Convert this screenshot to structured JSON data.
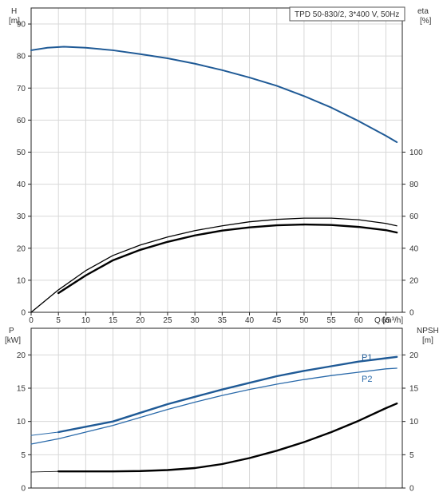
{
  "colors": {
    "grid": "#d8d8d8",
    "axis": "#222222",
    "blue": "#1f5a96",
    "thin_blue": "#2a6aaa",
    "black": "#000000"
  },
  "chart_data": [
    {
      "id": "top",
      "type": "line",
      "title": "TPD 50-830/2, 3*400 V, 50Hz",
      "x_axis": {
        "label": "Q [m³/h]",
        "range": [
          0,
          68
        ],
        "ticks": [
          0,
          5,
          10,
          15,
          20,
          25,
          30,
          35,
          40,
          45,
          50,
          55,
          60,
          65
        ]
      },
      "y_left": {
        "label_line1": "H",
        "label_line2": "[m]",
        "range": [
          0,
          95
        ],
        "ticks": [
          0,
          10,
          20,
          30,
          40,
          50,
          60,
          70,
          80,
          90
        ]
      },
      "y_right": {
        "label_line1": "eta",
        "label_line2": "[%]",
        "range": [
          0,
          190
        ],
        "ticks": [
          0,
          20,
          40,
          60,
          80,
          100
        ]
      },
      "grid": true,
      "series": [
        {
          "id": "H",
          "axis": "left",
          "color_key": "blue",
          "width": 2,
          "points": [
            [
              0,
              81.8
            ],
            [
              3,
              82.6
            ],
            [
              6,
              82.9
            ],
            [
              10,
              82.6
            ],
            [
              15,
              81.8
            ],
            [
              20,
              80.6
            ],
            [
              25,
              79.3
            ],
            [
              30,
              77.6
            ],
            [
              35,
              75.6
            ],
            [
              40,
              73.3
            ],
            [
              45,
              70.7
            ],
            [
              50,
              67.5
            ],
            [
              55,
              63.9
            ],
            [
              60,
              59.7
            ],
            [
              65,
              55.1
            ],
            [
              67,
              53.1
            ]
          ]
        },
        {
          "id": "eta_thin",
          "axis": "right",
          "color_key": "black",
          "width": 1.3,
          "points": [
            [
              0,
              0
            ],
            [
              5,
              14
            ],
            [
              10,
              26
            ],
            [
              15,
              35.5
            ],
            [
              20,
              42
            ],
            [
              25,
              47
            ],
            [
              30,
              51
            ],
            [
              35,
              54
            ],
            [
              40,
              56.5
            ],
            [
              45,
              58
            ],
            [
              50,
              58.8
            ],
            [
              55,
              58.8
            ],
            [
              60,
              57.8
            ],
            [
              65,
              55.5
            ],
            [
              67,
              54
            ]
          ]
        },
        {
          "id": "eta_thick",
          "axis": "right",
          "color_key": "black",
          "width": 2.4,
          "points": [
            [
              5,
              12
            ],
            [
              10,
              23
            ],
            [
              15,
              32.5
            ],
            [
              20,
              39
            ],
            [
              25,
              44
            ],
            [
              30,
              48
            ],
            [
              35,
              51
            ],
            [
              40,
              53
            ],
            [
              45,
              54.3
            ],
            [
              50,
              54.8
            ],
            [
              55,
              54.5
            ],
            [
              60,
              53.3
            ],
            [
              65,
              51.3
            ],
            [
              67,
              49.8
            ]
          ]
        },
        {
          "id": "origin_tail",
          "axis": "left",
          "color_key": "black",
          "width": 0.8,
          "points": [
            [
              0,
              0
            ],
            [
              5,
              7
            ]
          ]
        }
      ]
    },
    {
      "id": "bottom",
      "type": "line",
      "x_axis": {
        "range": [
          0,
          68
        ],
        "ticks": []
      },
      "y_left": {
        "label_line1": "P",
        "label_line2": "[kW]",
        "range": [
          0,
          24
        ],
        "ticks": [
          0,
          5,
          10,
          15,
          20
        ]
      },
      "y_right": {
        "label_line1": "NPSH",
        "label_line2": "[m]",
        "range": [
          0,
          24
        ],
        "ticks": [
          0,
          5,
          10,
          15,
          20
        ]
      },
      "grid": true,
      "series": [
        {
          "id": "P1",
          "name": "P1",
          "axis": "left",
          "color_key": "blue",
          "width": 2.4,
          "points": [
            [
              5,
              8.4
            ],
            [
              10,
              9.2
            ],
            [
              15,
              10.0
            ],
            [
              20,
              11.3
            ],
            [
              25,
              12.6
            ],
            [
              30,
              13.7
            ],
            [
              35,
              14.8
            ],
            [
              40,
              15.8
            ],
            [
              45,
              16.8
            ],
            [
              50,
              17.6
            ],
            [
              55,
              18.3
            ],
            [
              60,
              19.0
            ],
            [
              65,
              19.5
            ],
            [
              67,
              19.7
            ]
          ]
        },
        {
          "id": "P1_dim",
          "axis": "left",
          "color_key": "thin_blue",
          "width": 1,
          "points": [
            [
              0,
              7.9
            ],
            [
              5,
              8.4
            ]
          ]
        },
        {
          "id": "P2",
          "name": "P2",
          "axis": "left",
          "color_key": "thin_blue",
          "width": 1.3,
          "points": [
            [
              0,
              6.6
            ],
            [
              5,
              7.4
            ],
            [
              10,
              8.4
            ],
            [
              15,
              9.4
            ],
            [
              20,
              10.6
            ],
            [
              25,
              11.8
            ],
            [
              30,
              12.9
            ],
            [
              35,
              13.9
            ],
            [
              40,
              14.8
            ],
            [
              45,
              15.6
            ],
            [
              50,
              16.3
            ],
            [
              55,
              16.9
            ],
            [
              60,
              17.4
            ],
            [
              65,
              17.9
            ],
            [
              67,
              18.0
            ]
          ]
        },
        {
          "id": "NPSH",
          "axis": "right",
          "color_key": "black",
          "width": 2.4,
          "points": [
            [
              5,
              2.5
            ],
            [
              10,
              2.5
            ],
            [
              15,
              2.5
            ],
            [
              20,
              2.55
            ],
            [
              25,
              2.7
            ],
            [
              30,
              3.0
            ],
            [
              35,
              3.6
            ],
            [
              40,
              4.5
            ],
            [
              45,
              5.6
            ],
            [
              50,
              6.9
            ],
            [
              55,
              8.4
            ],
            [
              60,
              10.1
            ],
            [
              65,
              12.0
            ],
            [
              67,
              12.7
            ]
          ]
        },
        {
          "id": "NPSH_dim",
          "axis": "right",
          "color_key": "black",
          "width": 0.8,
          "points": [
            [
              0,
              2.4
            ],
            [
              5,
              2.5
            ]
          ]
        }
      ]
    }
  ]
}
